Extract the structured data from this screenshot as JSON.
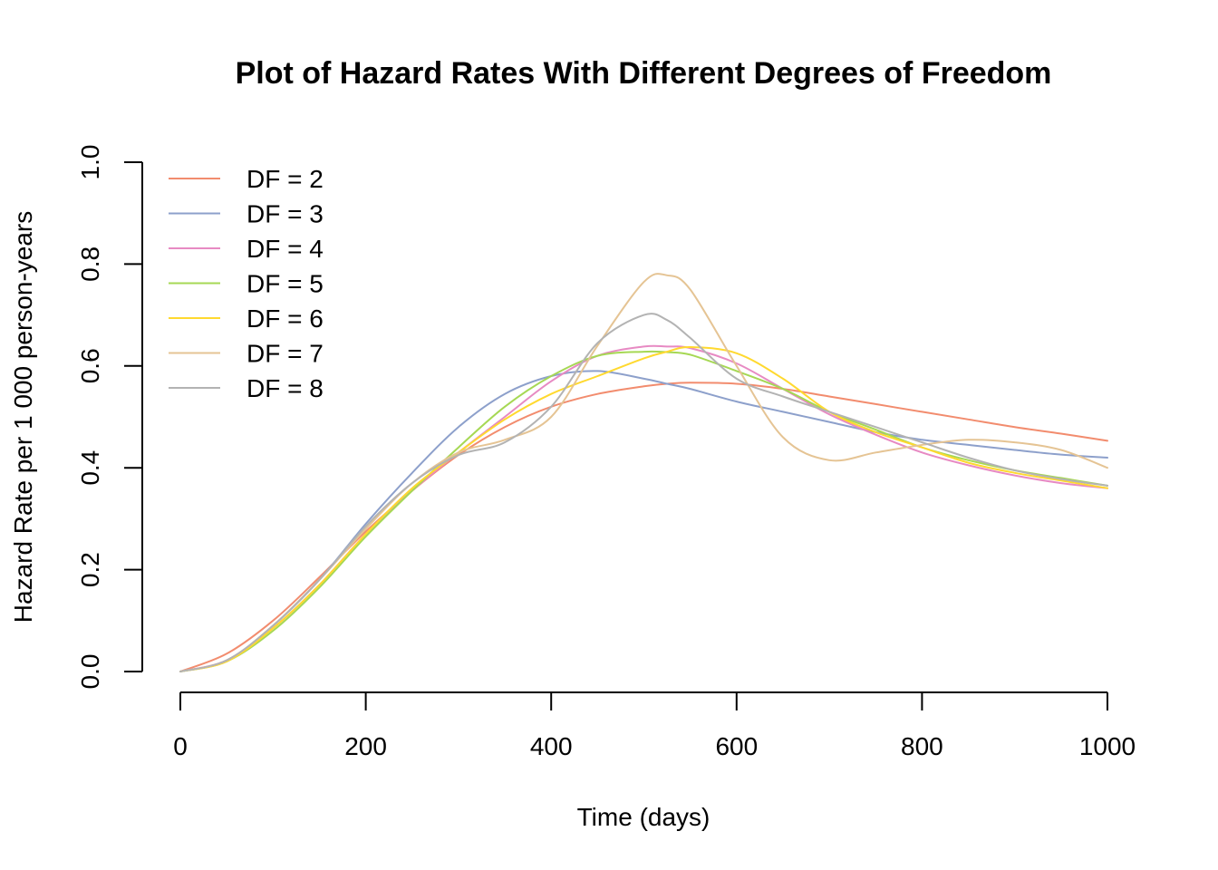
{
  "chart_data": {
    "type": "line",
    "title": "Plot of Hazard Rates With Different Degrees of Freedom",
    "xlabel": "Time (days)",
    "ylabel": "Hazard Rate per 1 000 person-years",
    "xlim": [
      0,
      1000
    ],
    "ylim": [
      0,
      1
    ],
    "x_ticks": [
      0,
      200,
      400,
      600,
      800,
      1000
    ],
    "x_tick_labels": [
      "0",
      "200",
      "400",
      "600",
      "800",
      "1000"
    ],
    "y_ticks": [
      0,
      0.2,
      0.4,
      0.6,
      0.8,
      1.0
    ],
    "y_tick_labels": [
      "0.0",
      "0.2",
      "0.4",
      "0.6",
      "0.8",
      "1.0"
    ],
    "grid": false,
    "legend_position": "top-left",
    "x": [
      0,
      50,
      100,
      150,
      200,
      250,
      300,
      350,
      400,
      450,
      500,
      525,
      550,
      600,
      650,
      700,
      750,
      800,
      850,
      900,
      950,
      1000
    ],
    "series": [
      {
        "name": "DF = 2",
        "color": "#F28C6E",
        "values": [
          0.0,
          0.035,
          0.1,
          0.185,
          0.275,
          0.355,
          0.425,
          0.48,
          0.52,
          0.545,
          0.56,
          0.565,
          0.567,
          0.565,
          0.555,
          0.54,
          0.525,
          0.51,
          0.495,
          0.48,
          0.467,
          0.453
        ]
      },
      {
        "name": "DF = 3",
        "color": "#8DA0CB",
        "values": [
          0.0,
          0.022,
          0.09,
          0.18,
          0.29,
          0.39,
          0.48,
          0.545,
          0.58,
          0.59,
          0.575,
          0.565,
          0.555,
          0.53,
          0.51,
          0.49,
          0.47,
          0.455,
          0.445,
          0.435,
          0.426,
          0.42
        ]
      },
      {
        "name": "DF = 4",
        "color": "#E78AC3",
        "values": [
          0.0,
          0.022,
          0.085,
          0.17,
          0.27,
          0.355,
          0.43,
          0.5,
          0.57,
          0.62,
          0.638,
          0.638,
          0.635,
          0.605,
          0.555,
          0.505,
          0.465,
          0.43,
          0.405,
          0.385,
          0.37,
          0.36
        ]
      },
      {
        "name": "DF = 5",
        "color": "#A6D854",
        "values": [
          0.0,
          0.02,
          0.08,
          0.165,
          0.265,
          0.355,
          0.44,
          0.52,
          0.58,
          0.62,
          0.628,
          0.627,
          0.622,
          0.59,
          0.555,
          0.51,
          0.475,
          0.44,
          0.415,
          0.395,
          0.38,
          0.365
        ]
      },
      {
        "name": "DF = 6",
        "color": "#FFD92F",
        "values": [
          0.0,
          0.02,
          0.085,
          0.17,
          0.27,
          0.36,
          0.43,
          0.495,
          0.545,
          0.58,
          0.615,
          0.628,
          0.637,
          0.625,
          0.575,
          0.51,
          0.47,
          0.44,
          0.41,
          0.39,
          0.375,
          0.36
        ]
      },
      {
        "name": "DF = 7",
        "color": "#E5C494",
        "values": [
          0.0,
          0.022,
          0.09,
          0.18,
          0.28,
          0.37,
          0.43,
          0.455,
          0.5,
          0.64,
          0.765,
          0.778,
          0.75,
          0.6,
          0.46,
          0.415,
          0.43,
          0.445,
          0.455,
          0.45,
          0.435,
          0.4
        ]
      },
      {
        "name": "DF = 8",
        "color": "#B3B3B3",
        "values": [
          0.0,
          0.022,
          0.09,
          0.18,
          0.285,
          0.37,
          0.425,
          0.45,
          0.52,
          0.645,
          0.7,
          0.69,
          0.655,
          0.575,
          0.54,
          0.51,
          0.48,
          0.45,
          0.42,
          0.395,
          0.378,
          0.365
        ]
      }
    ]
  }
}
